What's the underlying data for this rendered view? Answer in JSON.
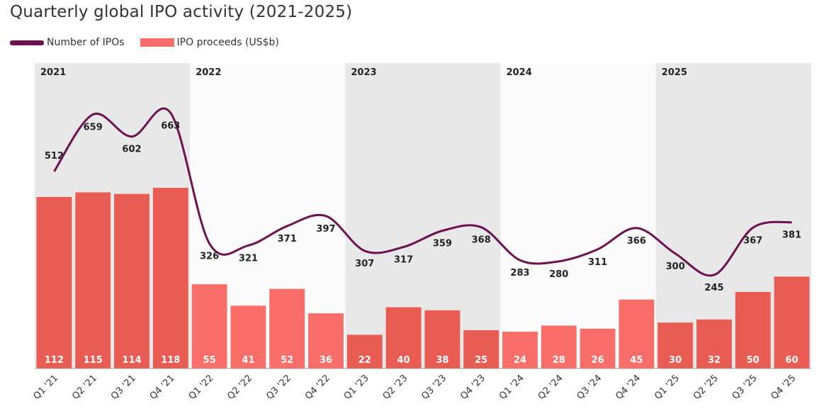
{
  "chart_data": {
    "type": "bar+line",
    "title": "Quarterly global IPO activity (2021-2025)",
    "categories": [
      "Q1 '21",
      "Q2 '21",
      "Q3 '21",
      "Q4 '21",
      "Q1 '22",
      "Q2 '22",
      "Q3 '22",
      "Q4 '22",
      "Q1 '23",
      "Q2 '23",
      "Q3 '23",
      "Q4 '23",
      "Q1 '24",
      "Q2 '24",
      "Q3 '24",
      "Q4 '24",
      "Q1 '25",
      "Q2 '25",
      "Q3 '25",
      "Q4 '25"
    ],
    "years": [
      "2021",
      "2022",
      "2023",
      "2024",
      "2025"
    ],
    "series": [
      {
        "name": "Number of IPOs",
        "type": "line",
        "color": "#6e1150",
        "values": [
          512,
          659,
          602,
          663,
          326,
          321,
          371,
          397,
          307,
          317,
          359,
          368,
          283,
          280,
          311,
          366,
          300,
          245,
          367,
          381
        ]
      },
      {
        "name": "IPO proceeds (US$b)",
        "type": "bar",
        "colors": [
          "#e85c54",
          "#fa6e6a"
        ],
        "values": [
          112,
          115,
          114,
          118,
          55,
          41,
          52,
          36,
          22,
          40,
          38,
          25,
          24,
          28,
          26,
          45,
          30,
          32,
          50,
          60
        ]
      }
    ],
    "band_colors": [
      "#e8e8e8",
      "#fbfbfb"
    ],
    "xlabel": "",
    "ylabel": ""
  }
}
